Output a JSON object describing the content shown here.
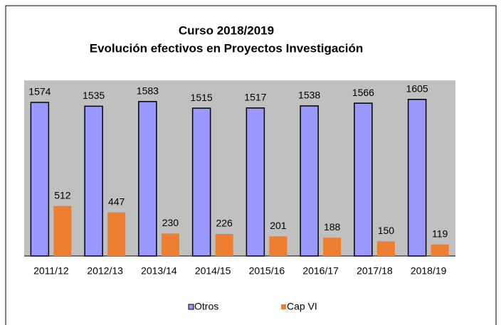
{
  "chart_data": {
    "type": "bar",
    "title": "Curso 2018/2019",
    "subtitle": "Evolución  efectivos  en Proyectos Investigación",
    "categories": [
      "2011/12",
      "2012/13",
      "2013/14",
      "2014/15",
      "2015/16",
      "2016/17",
      "2017/18",
      "2018/19"
    ],
    "series": [
      {
        "name": "Otros",
        "color": "#9999ff",
        "values": [
          1574,
          1535,
          1583,
          1515,
          1517,
          1538,
          1566,
          1605
        ]
      },
      {
        "name": "Cap VI",
        "color": "#ed7d31",
        "values": [
          512,
          447,
          230,
          226,
          201,
          188,
          150,
          119
        ]
      }
    ],
    "ylim": [
      0,
      1800
    ],
    "legend": "bottom"
  }
}
